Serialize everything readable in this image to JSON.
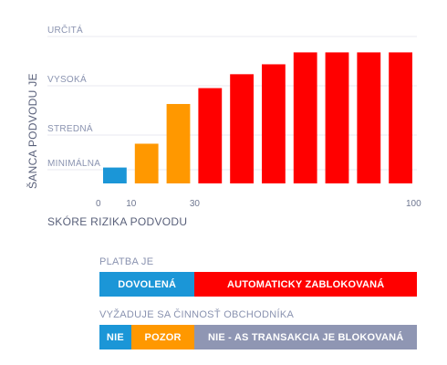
{
  "chart_data": {
    "type": "bar",
    "ylabel": "ŠANCA PODVODU JE",
    "xlabel": "SKÓRE RIZIKA PODVODU",
    "y_ticks": [
      "MINIMÁLNA",
      "STREDNÁ",
      "VYSOKÁ",
      "URČITÁ"
    ],
    "x_ticks": [
      0,
      10,
      30,
      100
    ],
    "xlim": [
      0,
      100
    ],
    "ylim": [
      0,
      3.7
    ],
    "x_start": [
      0,
      10,
      20,
      30,
      40,
      50,
      60,
      70,
      80,
      90
    ],
    "values": [
      0.4,
      1.0,
      2.0,
      2.4,
      2.75,
      3.0,
      3.3,
      3.3,
      3.3,
      3.3
    ],
    "bar_colors": [
      "#1b96d7",
      "#ff9800",
      "#ff9800",
      "#ff0000",
      "#ff0000",
      "#ff0000",
      "#ff0000",
      "#ff0000",
      "#ff0000",
      "#ff0000"
    ]
  },
  "legend": {
    "payment_label": "PLATBA JE",
    "payment": [
      {
        "label": "DOVOLENÁ",
        "from": 0,
        "to": 30,
        "color": "#1b96d7"
      },
      {
        "label": "AUTOMATICKY ZABLOKOVANÁ",
        "from": 30,
        "to": 100,
        "color": "#ff0000"
      }
    ],
    "merchant_label": "VYŽADUJE SA ČINNOSŤ OBCHODNÍKA",
    "merchant": [
      {
        "label": "NIE",
        "from": 0,
        "to": 10,
        "color": "#1b96d7"
      },
      {
        "label": "POZOR",
        "from": 10,
        "to": 30,
        "color": "#ff9800"
      },
      {
        "label": "NIE - AS TRANSAKCIA JE BLOKOVANÁ",
        "from": 30,
        "to": 100,
        "color": "#8f96b3"
      }
    ]
  }
}
